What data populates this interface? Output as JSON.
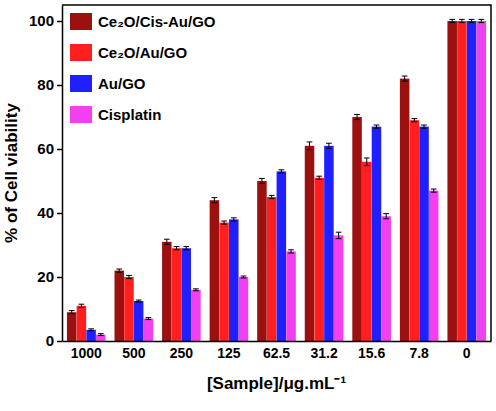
{
  "chart_data": {
    "type": "bar",
    "x_label": "[Sample]/μg.mL⁻¹",
    "y_label": "% of Cell viability",
    "categories": [
      "1000",
      "500",
      "250",
      "125",
      "62.5",
      "31.2",
      "15.6",
      "7.8",
      "0"
    ],
    "series": [
      {
        "name": "Ce₂O/Cis-Au/GO",
        "color": "#9c1010",
        "values": [
          9,
          22,
          31,
          44,
          50,
          61,
          70,
          82,
          100
        ],
        "errors": [
          0.5,
          0.5,
          0.8,
          0.8,
          0.8,
          1.2,
          0.8,
          0.8,
          0.5
        ]
      },
      {
        "name": "Ce₂O/Au/GO",
        "color": "#ff1f1f",
        "values": [
          11,
          20,
          29,
          37,
          45,
          51,
          56,
          69,
          100
        ],
        "errors": [
          0.5,
          0.5,
          0.5,
          0.5,
          0.5,
          0.5,
          1.2,
          0.5,
          0.5
        ]
      },
      {
        "name": "Au/GO",
        "color": "#1f1fff",
        "values": [
          3.5,
          12.5,
          29,
          38,
          53,
          61,
          67,
          67,
          100
        ],
        "errors": [
          0.3,
          0.3,
          0.5,
          0.5,
          0.5,
          0.8,
          0.5,
          0.5,
          0.5
        ]
      },
      {
        "name": "Cisplatin",
        "color": "#f040f0",
        "values": [
          2,
          7,
          16,
          20,
          28,
          33,
          39,
          47,
          100
        ],
        "errors": [
          0.3,
          0.3,
          0.3,
          0.3,
          0.5,
          1.0,
          0.8,
          0.5,
          0.5
        ]
      }
    ],
    "ylim": [
      0,
      105
    ],
    "yticks": [
      0,
      20,
      40,
      60,
      80,
      100
    ],
    "legend": "upper left",
    "grid": false
  }
}
